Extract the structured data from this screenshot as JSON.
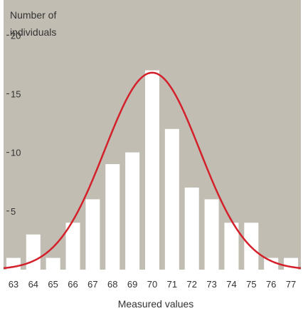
{
  "chart_data": {
    "type": "bar",
    "ylabel": "Number of individuals",
    "ylabel_lines": [
      "Number of",
      "individuals"
    ],
    "xlabel": "Measured values",
    "categories": [
      "63",
      "64",
      "65",
      "66",
      "67",
      "68",
      "69",
      "70",
      "71",
      "72",
      "73",
      "74",
      "75",
      "76",
      "77"
    ],
    "values": [
      1,
      3,
      1,
      4,
      6,
      9,
      10,
      17,
      12,
      7,
      6,
      4,
      4,
      1,
      1
    ],
    "ylim": [
      0,
      23
    ],
    "yticks": [
      5,
      10,
      15,
      20
    ],
    "ytick_labels": [
      "5",
      "10",
      "15",
      "20"
    ],
    "curve": {
      "type": "normal",
      "mean": 70,
      "sd": 2.4,
      "peak": 16.8
    },
    "grid": false,
    "legend": "none",
    "colors": {
      "plot_background": "#c1bdb2",
      "bar_fill": "#ffffff",
      "curve": "#d4202a",
      "text": "#333333"
    }
  }
}
